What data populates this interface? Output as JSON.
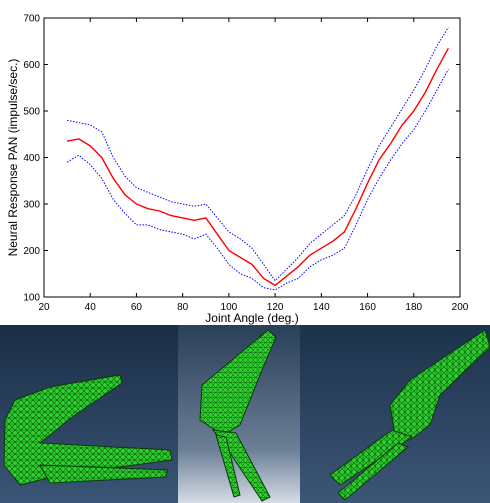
{
  "chart_data": {
    "type": "line",
    "title": "",
    "xlabel": "Joint Angle (deg.)",
    "ylabel": "Neural Response PAN (impulse/sec.)",
    "xlim": [
      20,
      200
    ],
    "ylim": [
      100,
      700
    ],
    "xticks": [
      20,
      40,
      60,
      80,
      100,
      120,
      140,
      160,
      180,
      200
    ],
    "yticks": [
      100,
      200,
      300,
      400,
      500,
      600,
      700
    ],
    "grid": false,
    "legend": "none",
    "x": [
      30,
      35,
      40,
      45,
      50,
      55,
      60,
      65,
      70,
      75,
      80,
      85,
      90,
      95,
      100,
      105,
      110,
      115,
      120,
      125,
      130,
      135,
      140,
      145,
      150,
      155,
      160,
      165,
      170,
      175,
      180,
      185,
      190,
      195
    ],
    "series": [
      {
        "color": "#ff0000",
        "style": "solid",
        "values": [
          435,
          440,
          425,
          400,
          355,
          320,
          300,
          290,
          285,
          275,
          270,
          265,
          270,
          235,
          200,
          185,
          170,
          140,
          125,
          145,
          165,
          190,
          205,
          220,
          240,
          290,
          345,
          395,
          430,
          470,
          500,
          540,
          590,
          635
        ]
      },
      {
        "color": "#0000ff",
        "style": "dotted",
        "values": [
          480,
          475,
          470,
          455,
          400,
          360,
          335,
          325,
          315,
          305,
          300,
          295,
          300,
          270,
          240,
          225,
          205,
          170,
          135,
          160,
          185,
          215,
          235,
          255,
          275,
          320,
          375,
          425,
          465,
          505,
          545,
          590,
          640,
          680
        ]
      },
      {
        "color": "#0000ff",
        "style": "dotted",
        "values": [
          390,
          405,
          385,
          355,
          310,
          280,
          255,
          255,
          245,
          240,
          235,
          225,
          235,
          205,
          170,
          150,
          140,
          120,
          115,
          130,
          140,
          165,
          180,
          190,
          205,
          255,
          310,
          355,
          395,
          430,
          460,
          500,
          545,
          590
        ]
      }
    ]
  },
  "mesh_panels": [
    {
      "name": "mesh-left-view",
      "icon": "knee-mesh-icon",
      "mesh_color": "#2fd12f",
      "bg_color": "#1f3550"
    },
    {
      "name": "mesh-middle-view",
      "icon": "knee-mesh-icon",
      "mesh_color": "#2fd12f",
      "bg_color": "#3a4f68"
    },
    {
      "name": "mesh-right-view",
      "icon": "knee-mesh-icon",
      "mesh_color": "#2fd12f",
      "bg_color": "#2b4058"
    }
  ]
}
